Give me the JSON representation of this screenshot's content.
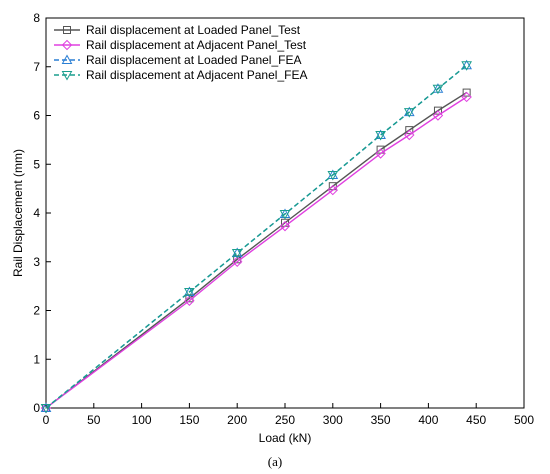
{
  "chart_data": {
    "type": "line",
    "xlabel": "Load (kN)",
    "ylabel": "Rail Displacement (mm)",
    "xlim": [
      0,
      500
    ],
    "ylim": [
      0,
      8
    ],
    "xticks": [
      "0",
      "50",
      "100",
      "150",
      "200",
      "250",
      "300",
      "350",
      "400",
      "450",
      "500"
    ],
    "yticks": [
      "0",
      "1",
      "2",
      "3",
      "4",
      "5",
      "6",
      "7",
      "8"
    ],
    "grid": false,
    "legend_position": "top-left",
    "caption": "(a)",
    "series": [
      {
        "name": "Rail displacement at Loaded Panel_Test",
        "color": "#555555",
        "dash": "solid",
        "marker": "square",
        "x": [
          0,
          150,
          200,
          250,
          300,
          350,
          380,
          410,
          440
        ],
        "y": [
          0,
          2.25,
          3.05,
          3.8,
          4.55,
          5.3,
          5.7,
          6.1,
          6.47
        ]
      },
      {
        "name": "Rail displacement at Adjacent Panel_Test",
        "color": "#e040e0",
        "dash": "solid",
        "marker": "diamond",
        "x": [
          0,
          150,
          200,
          250,
          300,
          350,
          380,
          410,
          440
        ],
        "y": [
          0,
          2.2,
          3.0,
          3.73,
          4.47,
          5.22,
          5.6,
          6.0,
          6.38
        ]
      },
      {
        "name": "Rail displacement at Loaded Panel_FEA",
        "color": "#2a7fd4",
        "dash": "dashed",
        "marker": "triangle-up",
        "x": [
          0,
          150,
          200,
          250,
          300,
          350,
          380,
          410,
          440
        ],
        "y": [
          0,
          2.38,
          3.18,
          3.98,
          4.78,
          5.6,
          6.07,
          6.55,
          7.03
        ]
      },
      {
        "name": "Rail displacement at Adjacent Panel_FEA",
        "color": "#1a9e8e",
        "dash": "dashed",
        "marker": "triangle-down",
        "x": [
          0,
          150,
          200,
          250,
          300,
          350,
          380,
          410,
          440
        ],
        "y": [
          0,
          2.38,
          3.18,
          3.98,
          4.78,
          5.6,
          6.07,
          6.55,
          7.03
        ]
      }
    ]
  }
}
